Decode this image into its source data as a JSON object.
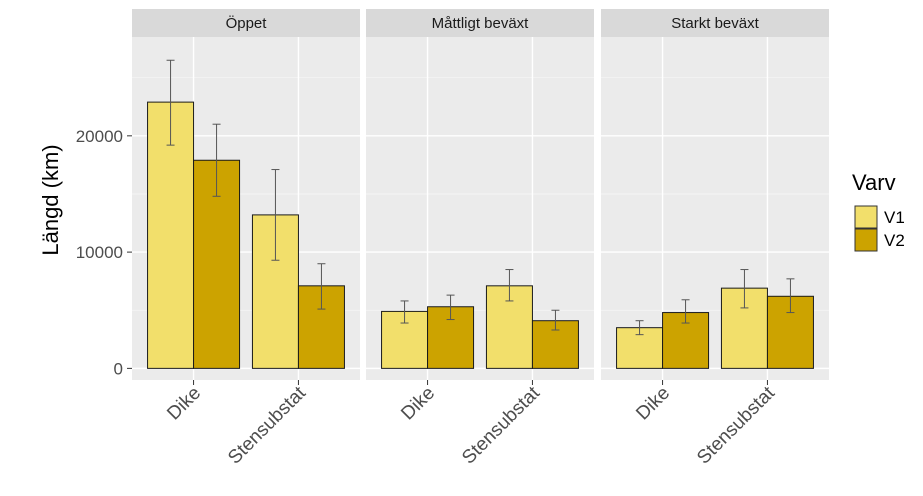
{
  "chart_data": {
    "type": "bar",
    "ylabel": "Längd (km)",
    "xlabel": "",
    "ylim": [
      -1000,
      28500
    ],
    "yticks": [
      0,
      10000,
      20000
    ],
    "ytick_labels": [
      "0",
      "10000",
      "20000"
    ],
    "panels": [
      "Öppet",
      "Måttligt beväxt",
      "Starkt beväxt"
    ],
    "categories": [
      "Dike",
      "Stensubstat"
    ],
    "legend": {
      "title": "Varv",
      "position": "right"
    },
    "series": [
      {
        "name": "V1",
        "color": "#f2df6b",
        "values": [
          [
            22900,
            13200
          ],
          [
            4900,
            7100
          ],
          [
            3500,
            6900
          ]
        ],
        "error_low": [
          [
            19200,
            9300
          ],
          [
            3900,
            5800
          ],
          [
            2900,
            5200
          ]
        ],
        "error_high": [
          [
            26500,
            17100
          ],
          [
            5800,
            8500
          ],
          [
            4100,
            8500
          ]
        ]
      },
      {
        "name": "V2",
        "color": "#cca300",
        "values": [
          [
            17900,
            7100
          ],
          [
            5300,
            4100
          ],
          [
            4800,
            6200
          ]
        ],
        "error_low": [
          [
            14800,
            5100
          ],
          [
            4200,
            3300
          ],
          [
            3900,
            4800
          ]
        ],
        "error_high": [
          [
            21000,
            9000
          ],
          [
            6300,
            5000
          ],
          [
            5900,
            7700
          ]
        ]
      }
    ],
    "grid": true,
    "panel_background": "#ebebeb",
    "strip_background": "#d9d9d9"
  }
}
